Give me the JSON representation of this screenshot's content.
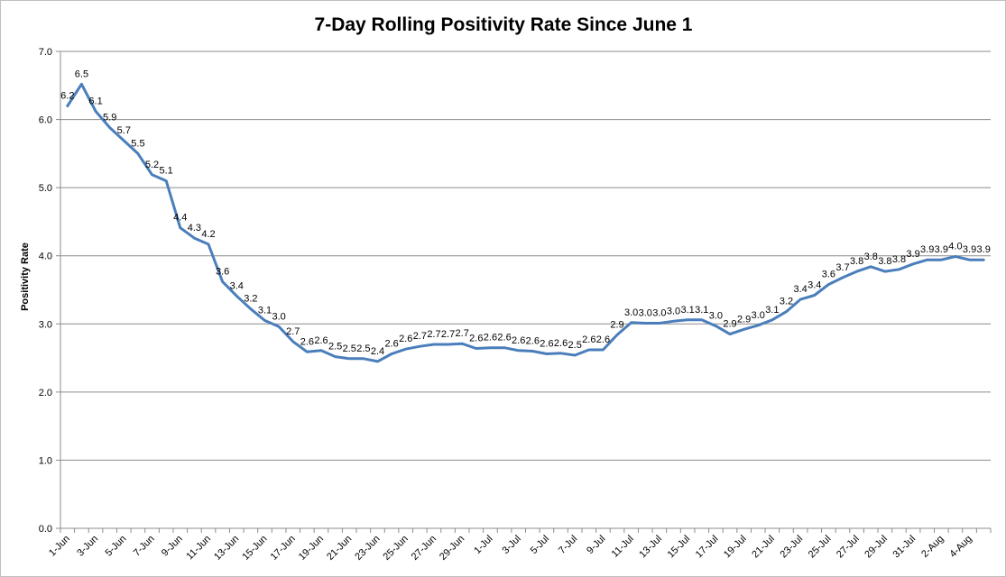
{
  "chart_data": {
    "type": "line",
    "title": "7-Day Rolling Positivity Rate Since June 1",
    "xlabel": "",
    "ylabel": "Positivity Rate",
    "ylim": [
      0,
      7
    ],
    "yticks": [
      "0.0",
      "1.0",
      "2.0",
      "3.0",
      "4.0",
      "5.0",
      "6.0",
      "7.0"
    ],
    "grid": true,
    "legend": "none",
    "x_tick_labels": [
      "1-Jun",
      "3-Jun",
      "5-Jun",
      "7-Jun",
      "9-Jun",
      "11-Jun",
      "13-Jun",
      "15-Jun",
      "17-Jun",
      "19-Jun",
      "21-Jun",
      "23-Jun",
      "25-Jun",
      "27-Jun",
      "29-Jun",
      "1-Jul",
      "3-Jul",
      "5-Jul",
      "7-Jul",
      "9-Jul",
      "11-Jul",
      "13-Jul",
      "15-Jul",
      "17-Jul",
      "19-Jul",
      "21-Jul",
      "23-Jul",
      "25-Jul",
      "27-Jul",
      "29-Jul",
      "31-Jul",
      "2-Aug",
      "4-Aug"
    ],
    "series": [
      {
        "color": "#4a7ebb",
        "values": [
          6.2,
          6.5,
          6.1,
          5.9,
          5.7,
          5.5,
          5.2,
          5.1,
          4.4,
          4.3,
          4.2,
          3.6,
          3.4,
          3.2,
          3.1,
          3.0,
          2.7,
          2.6,
          2.6,
          2.5,
          2.5,
          2.5,
          2.4,
          2.6,
          2.6,
          2.7,
          2.7,
          2.7,
          2.7,
          2.6,
          2.6,
          2.6,
          2.6,
          2.6,
          2.6,
          2.6,
          2.5,
          2.6,
          2.6,
          2.9,
          3.0,
          3.0,
          3.0,
          3.0,
          3.1,
          3.1,
          3.0,
          2.9,
          2.9,
          3.0,
          3.1,
          3.2,
          3.4,
          3.4,
          3.6,
          3.7,
          3.8,
          3.8,
          3.8,
          3.8,
          3.9,
          3.9,
          3.9,
          4.0,
          3.9,
          3.9
        ],
        "plot_values": [
          6.2,
          6.52,
          6.12,
          5.88,
          5.69,
          5.5,
          5.19,
          5.1,
          4.41,
          4.26,
          4.17,
          3.62,
          3.41,
          3.22,
          3.05,
          2.96,
          2.74,
          2.59,
          2.61,
          2.52,
          2.49,
          2.49,
          2.45,
          2.56,
          2.63,
          2.67,
          2.7,
          2.7,
          2.71,
          2.64,
          2.65,
          2.65,
          2.61,
          2.6,
          2.56,
          2.57,
          2.54,
          2.62,
          2.62,
          2.84,
          3.02,
          3.01,
          3.01,
          3.04,
          3.06,
          3.06,
          2.97,
          2.85,
          2.92,
          2.98,
          3.06,
          3.18,
          3.36,
          3.42,
          3.58,
          3.68,
          3.77,
          3.84,
          3.77,
          3.8,
          3.88,
          3.94,
          3.94,
          3.99,
          3.94,
          3.94
        ]
      }
    ]
  }
}
